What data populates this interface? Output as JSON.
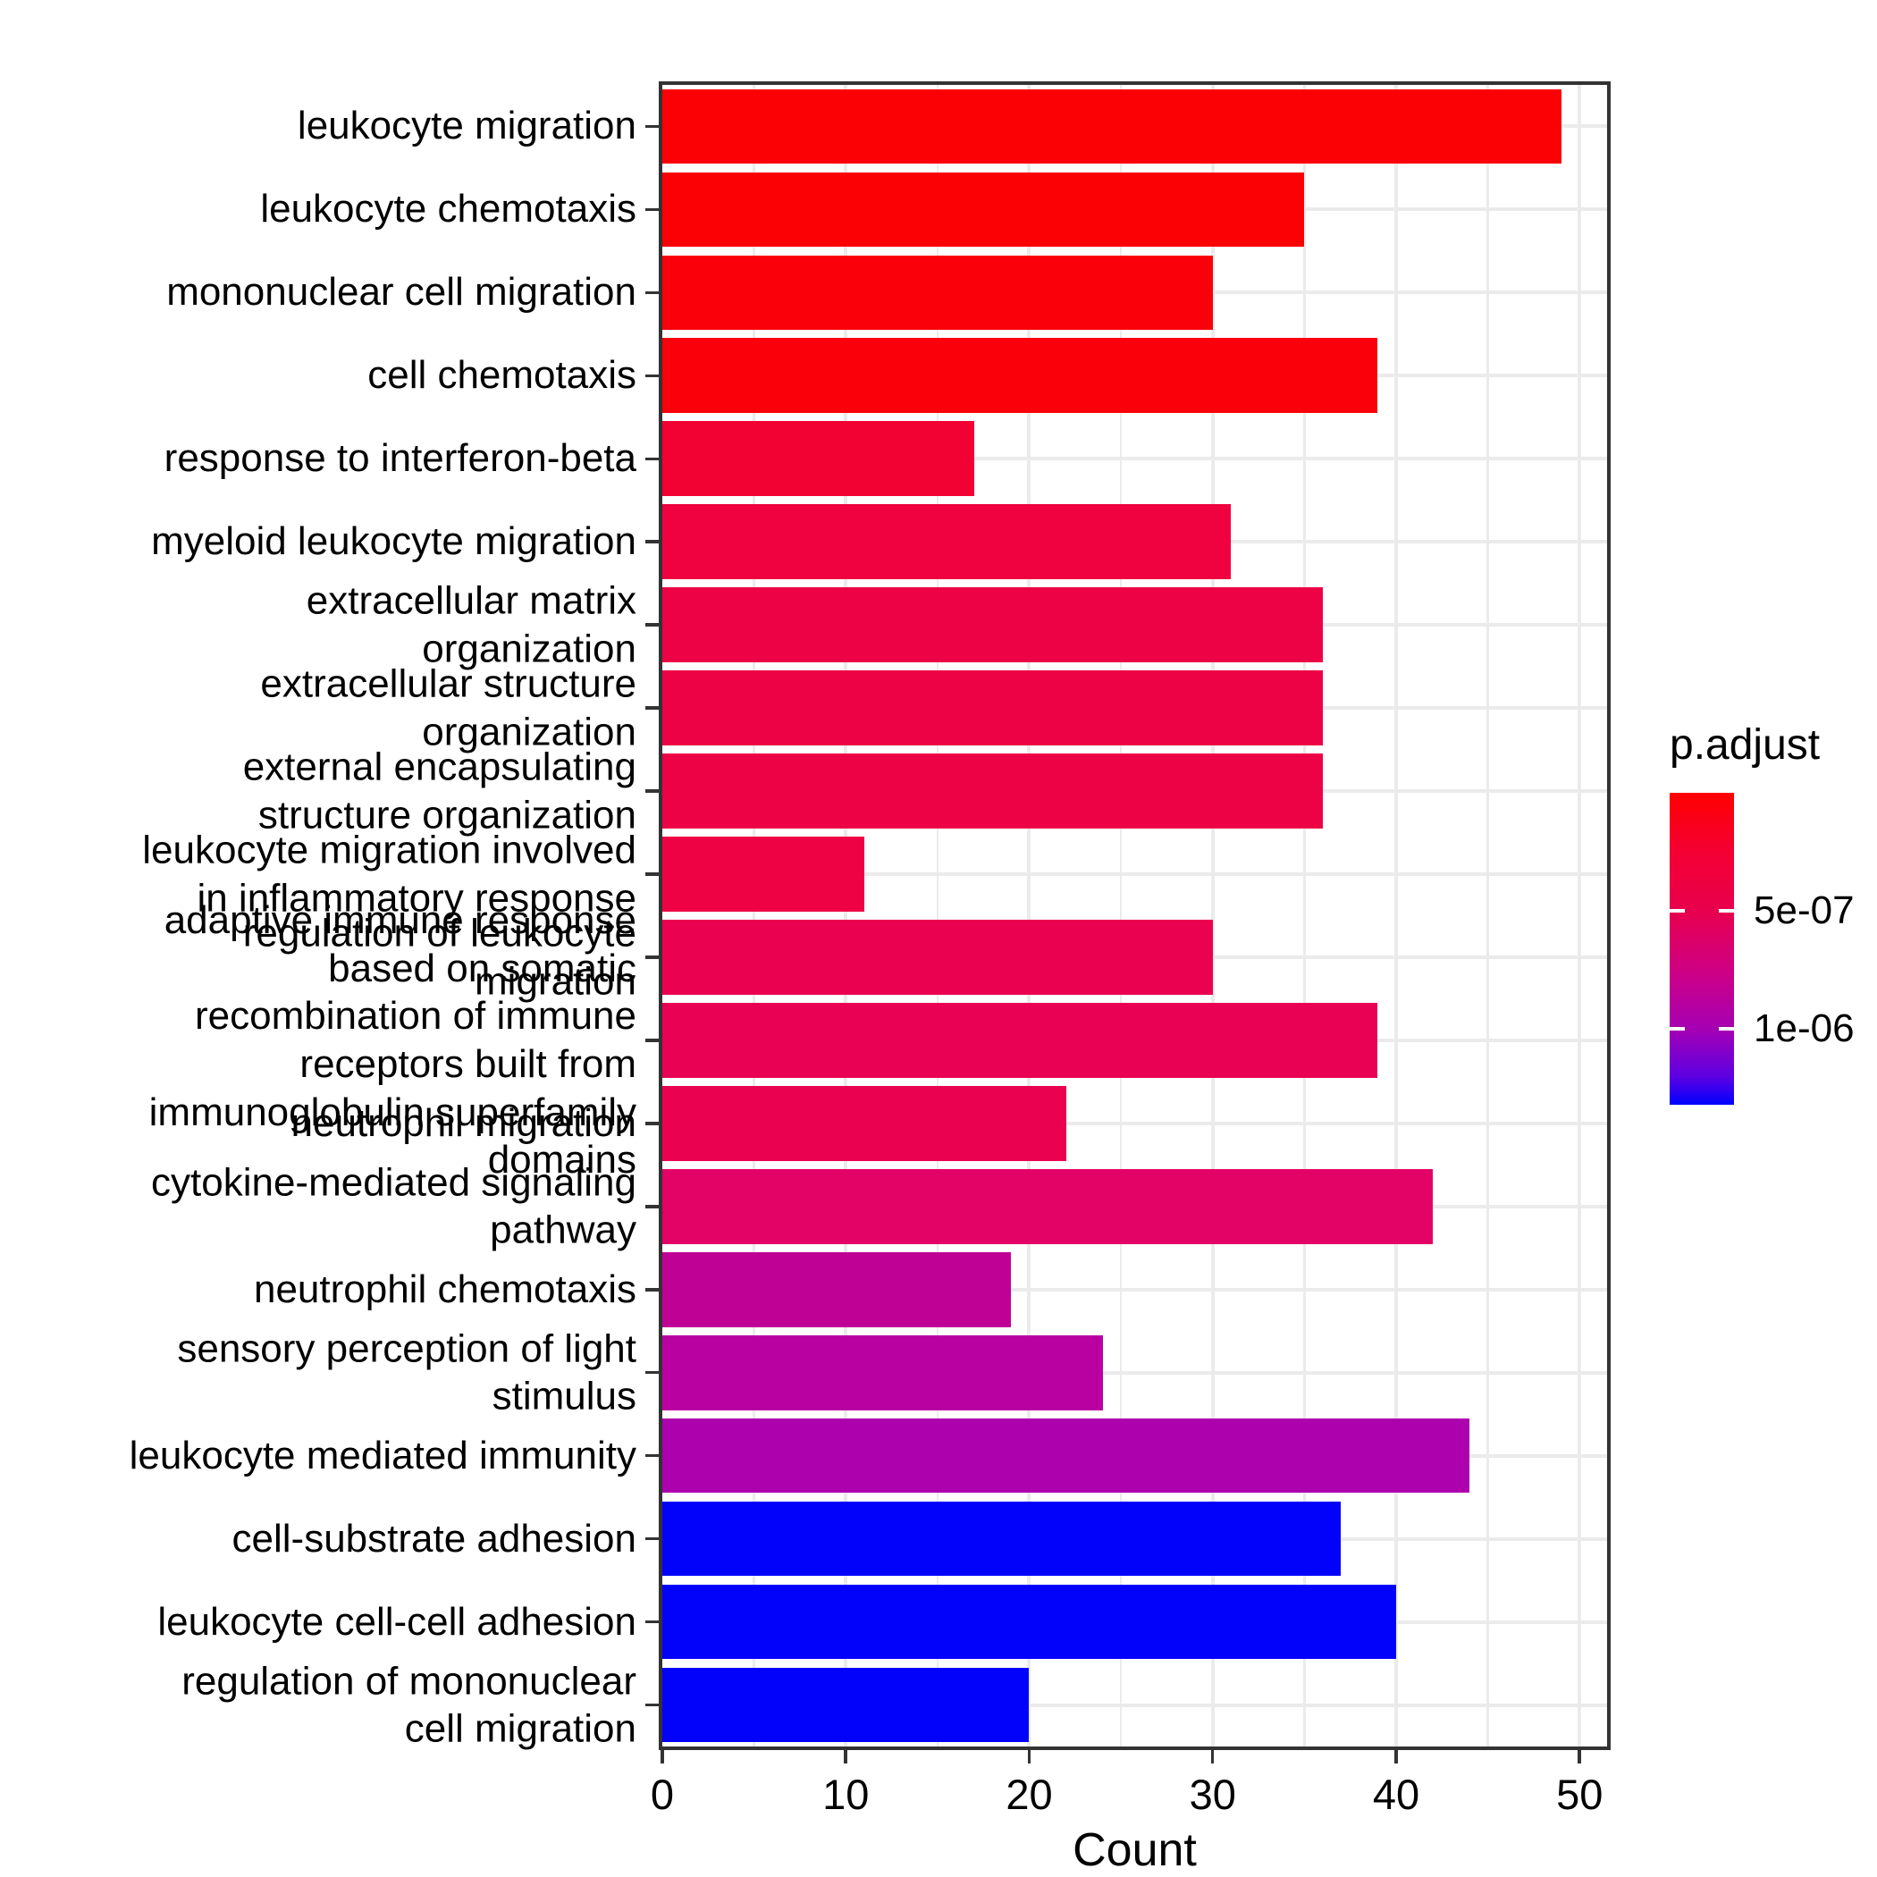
{
  "chart_data": {
    "type": "bar",
    "orientation": "horizontal",
    "title": "",
    "xlabel": "Count",
    "ylabel": "",
    "xlim": [
      0,
      51.5
    ],
    "x_ticks": [
      0,
      10,
      20,
      30,
      40,
      50
    ],
    "x_minor_ticks": [
      5,
      15,
      25,
      35,
      45
    ],
    "grid": true,
    "legend_position": "right",
    "categories": [
      "leukocyte migration",
      "leukocyte chemotaxis",
      "mononuclear cell migration",
      "cell chemotaxis",
      "response to interferon-beta",
      "myeloid leukocyte migration",
      "extracellular matrix organization",
      "extracellular structure organization",
      "external encapsulating structure organization",
      "leukocyte migration involved in inflammatory response",
      "regulation of leukocyte migration",
      "adaptive immune response based on somatic recombination of immune receptors built from immunoglobulin superfamily domains",
      "neutrophil migration",
      "cytokine-mediated signaling pathway",
      "neutrophil chemotaxis",
      "sensory perception of light stimulus",
      "leukocyte mediated immunity",
      "cell-substrate adhesion",
      "leukocyte cell-cell adhesion",
      "regulation of mononuclear cell migration"
    ],
    "label_wraps": [
      "leukocyte migration",
      "leukocyte chemotaxis",
      "mononuclear cell migration",
      "cell chemotaxis",
      "response to interferon-beta",
      "myeloid leukocyte migration",
      "extracellular matrix\norganization",
      "extracellular structure\norganization",
      "external encapsulating\nstructure organization",
      "leukocyte migration involved\nin inflammatory response",
      "regulation of leukocyte\nmigration",
      "adaptive immune response\nbased on somatic\nrecombination of immune\nreceptors built from\nimmunoglobulin superfamily\ndomains",
      "neutrophil migration",
      "cytokine-mediated signaling\npathway",
      "neutrophil chemotaxis",
      "sensory perception of light\nstimulus",
      "leukocyte mediated immunity",
      "cell-substrate adhesion",
      "leukocyte cell-cell adhesion",
      "regulation of mononuclear\ncell migration"
    ],
    "values": [
      49,
      35,
      30,
      39,
      17,
      31,
      36,
      36,
      36,
      11,
      30,
      39,
      22,
      42,
      19,
      24,
      44,
      37,
      40,
      20
    ],
    "bar_colors": [
      "#fb0004",
      "#fb0004",
      "#fa000a",
      "#fa000a",
      "#f20133",
      "#ef023f",
      "#ed0246",
      "#ed0246",
      "#ed0246",
      "#ee0243",
      "#ea0250",
      "#e90253",
      "#ea0250",
      "#e30366",
      "#bf0295",
      "#b901a1",
      "#ae01ae",
      "#0202fb",
      "#0202fb",
      "#0202fb"
    ],
    "legend": {
      "title": "p.adjust",
      "gradient_top_color": "#ff0000",
      "gradient_bottom_color": "#0000ff",
      "ticks": [
        {
          "label": "5e-07",
          "pos": 0.378
        },
        {
          "label": "1e-06",
          "pos": 0.756
        }
      ]
    }
  }
}
